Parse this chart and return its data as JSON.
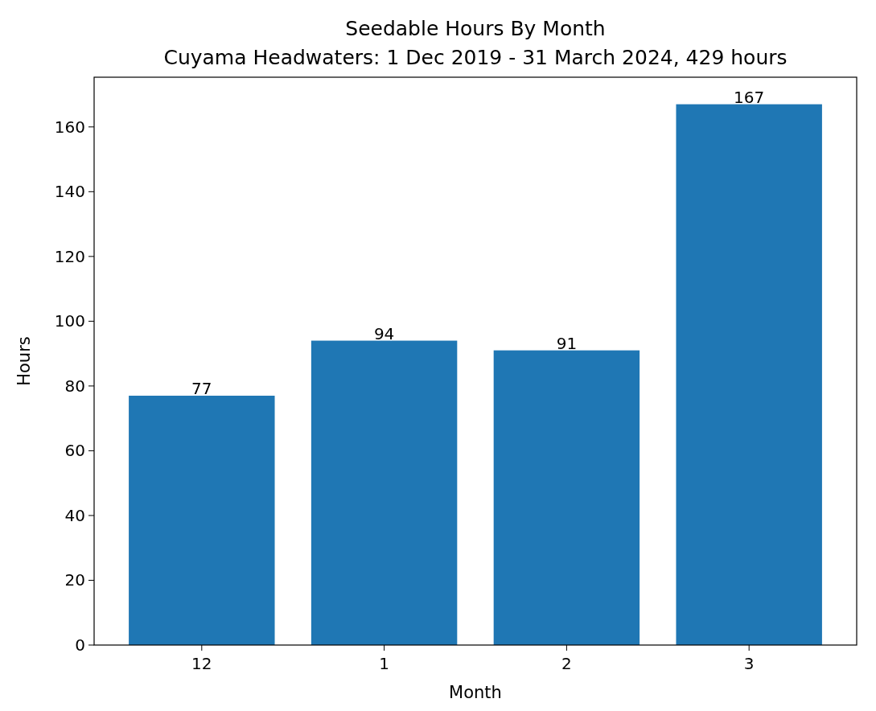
{
  "chart_data": {
    "type": "bar",
    "title": "Seedable Hours By Month",
    "subtitle": "Cuyama Headwaters: 1 Dec 2019 - 31 March 2024, 429 hours",
    "xlabel": "Month",
    "ylabel": "Hours",
    "categories": [
      "12",
      "1",
      "2",
      "3"
    ],
    "values": [
      77,
      94,
      91,
      167
    ],
    "color": "#1f77b4",
    "ylim": [
      0,
      175.35
    ],
    "yticks": [
      0,
      20,
      40,
      60,
      80,
      100,
      120,
      140,
      160
    ],
    "data_labels": true,
    "grid": false
  }
}
